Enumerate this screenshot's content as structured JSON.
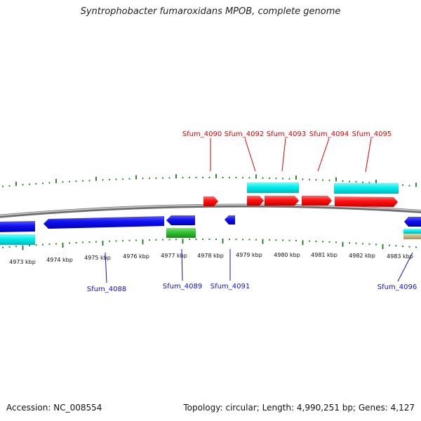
{
  "title": "Syntrophobacter fumaroxidans MPOB, complete genome",
  "footer": {
    "accession": "Accession: NC_008554",
    "summary": "Topology: circular; Length: 4,990,251 bp; Genes: 4,127"
  },
  "ticks": [
    {
      "label": "4973 kbp",
      "kbp": 4973
    },
    {
      "label": "4974 kbp",
      "kbp": 4974
    },
    {
      "label": "4975 kbp",
      "kbp": 4975
    },
    {
      "label": "4976 kbp",
      "kbp": 4976
    },
    {
      "label": "4977 kbp",
      "kbp": 4977
    },
    {
      "label": "4978 kbp",
      "kbp": 4978
    },
    {
      "label": "4979 kbp",
      "kbp": 4979
    },
    {
      "label": "4980 kbp",
      "kbp": 4980
    },
    {
      "label": "4981 kbp",
      "kbp": 4981
    },
    {
      "label": "4982 kbp",
      "kbp": 4982
    },
    {
      "label": "4983 kbp",
      "kbp": 4983
    }
  ],
  "genes_forward": [
    {
      "label": "Sfum_4090",
      "color": "#dd0000"
    },
    {
      "label": "Sfum_4092",
      "color": "#dd0000"
    },
    {
      "label": "Sfum_4093",
      "color": "#dd0000"
    },
    {
      "label": "Sfum_4094",
      "color": "#dd0000"
    },
    {
      "label": "Sfum_4095",
      "color": "#dd0000"
    }
  ],
  "genes_reverse": [
    {
      "label": "Sfum_4088",
      "color": "#1010cc"
    },
    {
      "label": "Sfum_4089",
      "color": "#1010cc"
    },
    {
      "label": "Sfum_4091",
      "color": "#1010cc"
    },
    {
      "label": "Sfum_4096",
      "color": "#1010cc"
    }
  ],
  "colors": {
    "forward_cds": "#ff0000",
    "reverse_cds": "#0a0aee",
    "forward_label": "#dd0000",
    "reverse_label": "#1010cc",
    "cyan_feature": "#00e8e8",
    "green_feature": "#30c030",
    "tan_feature": "#c8b478",
    "gc_ticks": "#1a7a1a",
    "backbone": "#8a8a8a"
  }
}
